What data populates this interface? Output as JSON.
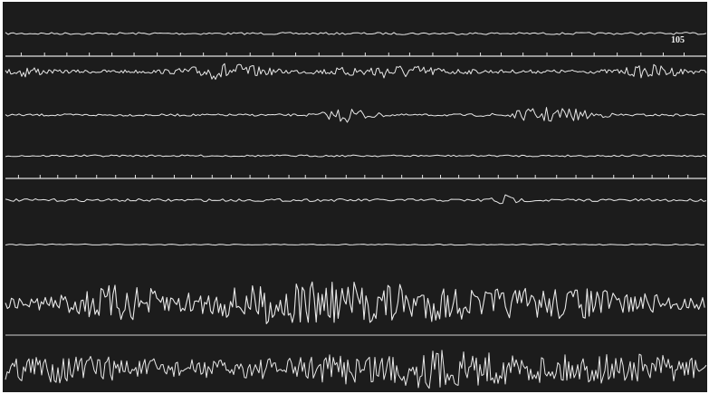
{
  "page_number": "105"
}
